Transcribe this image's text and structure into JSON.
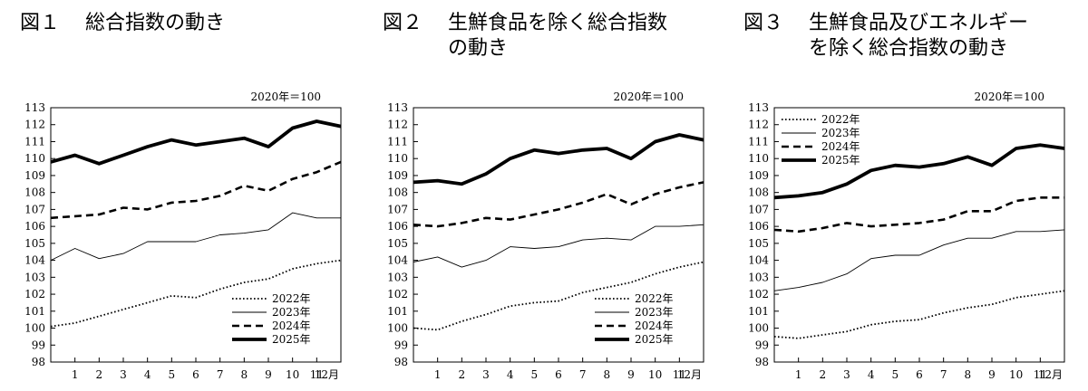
{
  "chart_data": [
    {
      "type": "line",
      "fig_label": "図１",
      "title_lines": [
        "総合指数の動き"
      ],
      "base_note": "2020年＝100",
      "x_labels": [
        "",
        "1",
        "2",
        "3",
        "4",
        "5",
        "6",
        "7",
        "8",
        "9",
        "10",
        "11",
        "12月"
      ],
      "y_ticks": [
        98,
        99,
        100,
        101,
        102,
        103,
        104,
        105,
        106,
        107,
        108,
        109,
        110,
        111,
        112,
        113
      ],
      "ylim": [
        98,
        113
      ],
      "legend_position": "bottom-right",
      "series": [
        {
          "name": "2022年",
          "style": "dotted",
          "values": [
            100.1,
            100.3,
            100.7,
            101.1,
            101.5,
            101.9,
            101.8,
            102.3,
            102.7,
            102.9,
            103.5,
            103.8,
            104.0
          ]
        },
        {
          "name": "2023年",
          "style": "thin",
          "values": [
            104.0,
            104.7,
            104.1,
            104.4,
            105.1,
            105.1,
            105.1,
            105.5,
            105.6,
            105.8,
            106.8,
            106.5,
            106.5
          ]
        },
        {
          "name": "2024年",
          "style": "dashed",
          "values": [
            106.5,
            106.6,
            106.7,
            107.1,
            107.0,
            107.4,
            107.5,
            107.8,
            108.4,
            108.1,
            108.8,
            109.2,
            109.8
          ]
        },
        {
          "name": "2025年",
          "style": "thick",
          "values": [
            109.8,
            110.2,
            109.7,
            110.2,
            110.7,
            111.1,
            110.8,
            111.0,
            111.2,
            110.7,
            111.8,
            112.2,
            111.9
          ]
        }
      ]
    },
    {
      "type": "line",
      "fig_label": "図２",
      "title_lines": [
        "生鮮食品を除く総合指数",
        "の動き"
      ],
      "base_note": "2020年＝100",
      "x_labels": [
        "",
        "1",
        "2",
        "3",
        "4",
        "5",
        "6",
        "7",
        "8",
        "9",
        "10",
        "11",
        "12月"
      ],
      "y_ticks": [
        98,
        99,
        100,
        101,
        102,
        103,
        104,
        105,
        106,
        107,
        108,
        109,
        110,
        111,
        112,
        113
      ],
      "ylim": [
        98,
        113
      ],
      "legend_position": "bottom-right",
      "series": [
        {
          "name": "2022年",
          "style": "dotted",
          "values": [
            100.0,
            99.9,
            100.4,
            100.8,
            101.3,
            101.5,
            101.6,
            102.1,
            102.4,
            102.7,
            103.2,
            103.6,
            103.9
          ]
        },
        {
          "name": "2023年",
          "style": "thin",
          "values": [
            103.9,
            104.2,
            103.6,
            104.0,
            104.8,
            104.7,
            104.8,
            105.2,
            105.3,
            105.2,
            106.0,
            106.0,
            106.1
          ]
        },
        {
          "name": "2024年",
          "style": "dashed",
          "values": [
            106.1,
            106.0,
            106.2,
            106.5,
            106.4,
            106.7,
            107.0,
            107.4,
            107.9,
            107.3,
            107.9,
            108.3,
            108.6
          ]
        },
        {
          "name": "2025年",
          "style": "thick",
          "values": [
            108.6,
            108.7,
            108.5,
            109.1,
            110.0,
            110.5,
            110.3,
            110.5,
            110.6,
            110.0,
            111.0,
            111.4,
            111.1
          ]
        }
      ]
    },
    {
      "type": "line",
      "fig_label": "図３",
      "title_lines": [
        "生鮮食品及びエネルギー",
        "を除く総合指数の動き"
      ],
      "base_note": "2020年＝100",
      "x_labels": [
        "",
        "1",
        "2",
        "3",
        "4",
        "5",
        "6",
        "7",
        "8",
        "9",
        "10",
        "11",
        "12月"
      ],
      "y_ticks": [
        98,
        99,
        100,
        101,
        102,
        103,
        104,
        105,
        106,
        107,
        108,
        109,
        110,
        111,
        112,
        113
      ],
      "ylim": [
        98,
        113
      ],
      "legend_position": "top-left",
      "series": [
        {
          "name": "2022年",
          "style": "dotted",
          "values": [
            99.5,
            99.4,
            99.6,
            99.8,
            100.2,
            100.4,
            100.5,
            100.9,
            101.2,
            101.4,
            101.8,
            102.0,
            102.2
          ]
        },
        {
          "name": "2023年",
          "style": "thin",
          "values": [
            102.2,
            102.4,
            102.7,
            103.2,
            104.1,
            104.3,
            104.3,
            104.9,
            105.3,
            105.3,
            105.7,
            105.7,
            105.8
          ]
        },
        {
          "name": "2024年",
          "style": "dashed",
          "values": [
            105.8,
            105.7,
            105.9,
            106.2,
            106.0,
            106.1,
            106.2,
            106.4,
            106.9,
            106.9,
            107.5,
            107.7,
            107.7
          ]
        },
        {
          "name": "2025年",
          "style": "thick",
          "values": [
            107.7,
            107.8,
            108.0,
            108.5,
            109.3,
            109.6,
            109.5,
            109.7,
            110.1,
            109.6,
            110.6,
            110.8,
            110.6
          ]
        }
      ]
    }
  ]
}
